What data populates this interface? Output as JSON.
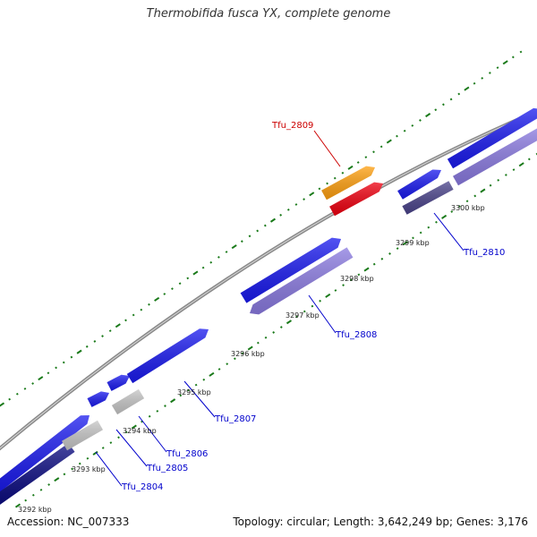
{
  "title": "Thermobifida fusca YX, complete genome",
  "footer": {
    "accession": "Accession: NC_007333",
    "summary": "Topology: circular; Length: 3,642,249 bp; Genes: 3,176"
  },
  "colors": {
    "backbone": "#8a8a8a",
    "tick": "#1a7a1a",
    "gene_blue": "#1a1aee",
    "gene_lavender": "#8a7ae0",
    "gene_navy": "#0b0b80",
    "gene_gray": "#c6c6c6",
    "gene_slate": "#4a438a",
    "gene_orange": "#ffa010",
    "gene_red": "#ee0010",
    "label_blue": "#0000cc",
    "label_red": "#cc0000"
  },
  "kbp_labels": [
    "3292 kbp",
    "3293 kbp",
    "3294 kbp",
    "3295 kbp",
    "3296 kbp",
    "3297 kbp",
    "3298 kbp",
    "3299 kbp",
    "3300 kbp"
  ],
  "gene_labels": [
    {
      "name": "Tfu_2804",
      "color": "blue"
    },
    {
      "name": "Tfu_2805",
      "color": "blue"
    },
    {
      "name": "Tfu_2806",
      "color": "blue"
    },
    {
      "name": "Tfu_2807",
      "color": "blue"
    },
    {
      "name": "Tfu_2808",
      "color": "blue"
    },
    {
      "name": "Tfu_2809",
      "color": "red"
    },
    {
      "name": "Tfu_2810",
      "color": "blue"
    }
  ]
}
